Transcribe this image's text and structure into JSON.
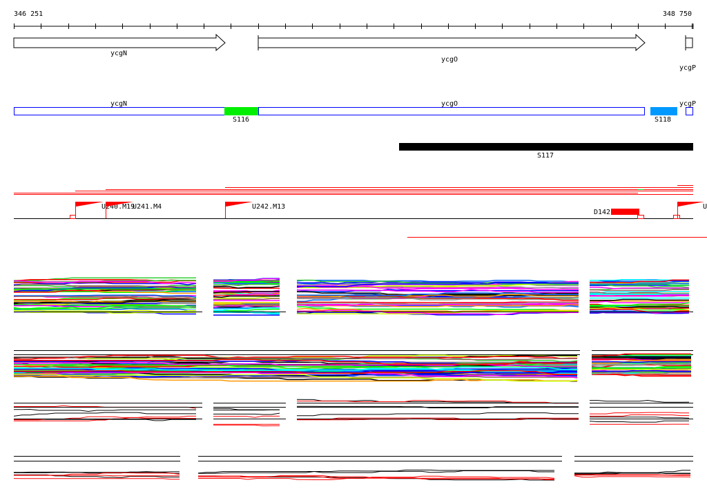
{
  "ruler": {
    "start_label": "346 251",
    "end_label": "348 750"
  },
  "genes": [
    {
      "name": "ycgN",
      "strand": "+"
    },
    {
      "name": "ycgO",
      "strand": "+"
    },
    {
      "name": "ycgP",
      "strand": "+"
    }
  ],
  "annotation_track": {
    "genes": [
      "ycgN",
      "ycgO",
      "ycgP"
    ],
    "segments": [
      {
        "label": "S116",
        "color": "#00ee00"
      },
      {
        "label": "S118",
        "color": "#0099ff"
      }
    ]
  },
  "segment_bar": {
    "label": "S117",
    "color": "#000000"
  },
  "features": {
    "flags": [
      "U240.M19",
      "U241.M4",
      "U242.M13",
      "U"
    ],
    "deletion": {
      "label": "D142",
      "color": "#ff0000"
    }
  },
  "colors": {
    "accent_red": "#ff0000",
    "gene_outline": "#0000ff"
  }
}
